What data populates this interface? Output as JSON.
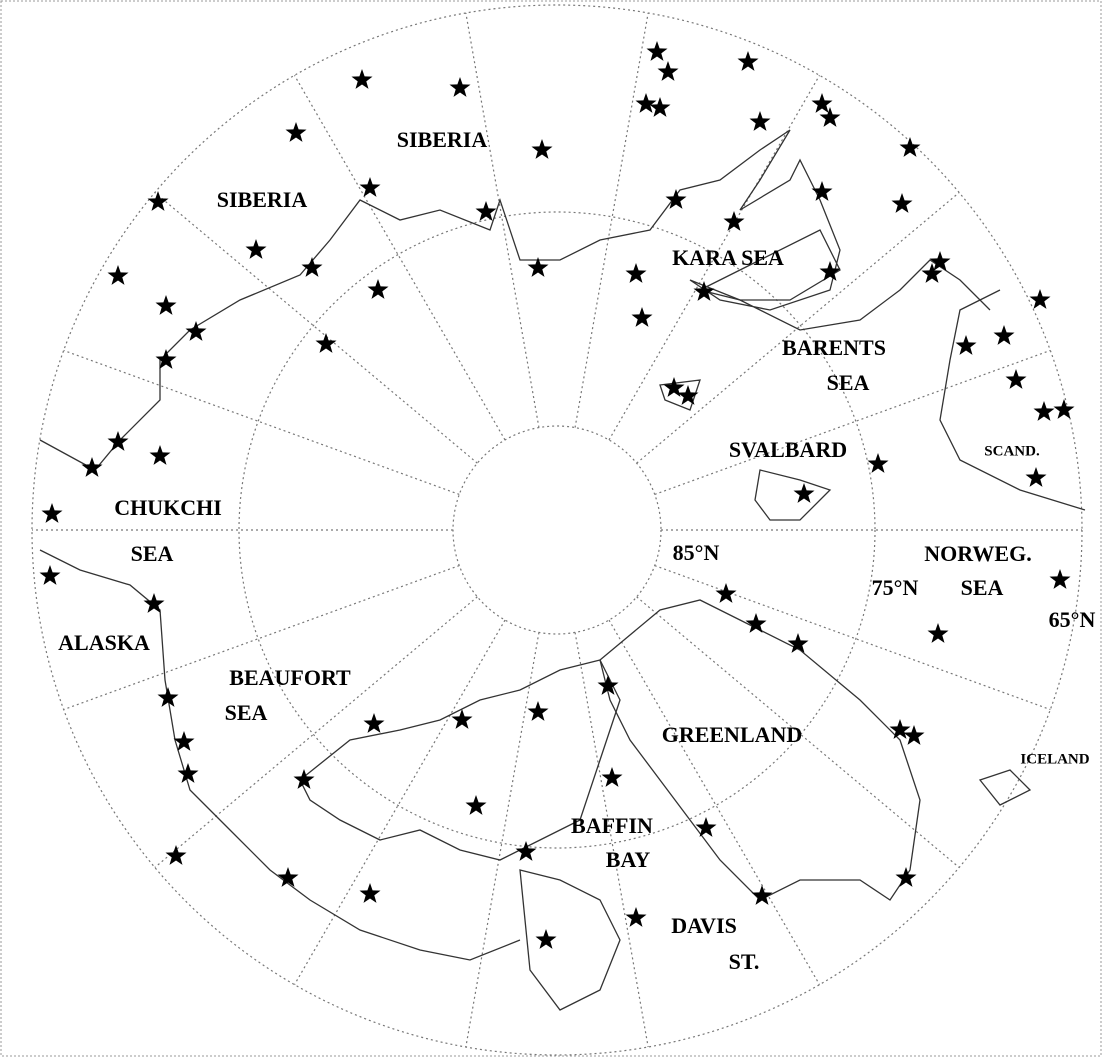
{
  "map": {
    "region_labels": [
      "SIBERIA",
      "SIBERIA",
      "KARA SEA",
      "BARENTS",
      "SEA",
      "SVALBARD",
      "SCAND.",
      "CHUKCHI",
      "SEA",
      "NORWEG.",
      "SEA",
      "ALASKA",
      "BEAUFORT",
      "SEA",
      "GREENLAND",
      "ICELAND",
      "BAFFIN",
      "BAY",
      "DAVIS",
      "ST."
    ],
    "latitude_labels": [
      "85°N",
      "75°N",
      "65°N"
    ]
  }
}
